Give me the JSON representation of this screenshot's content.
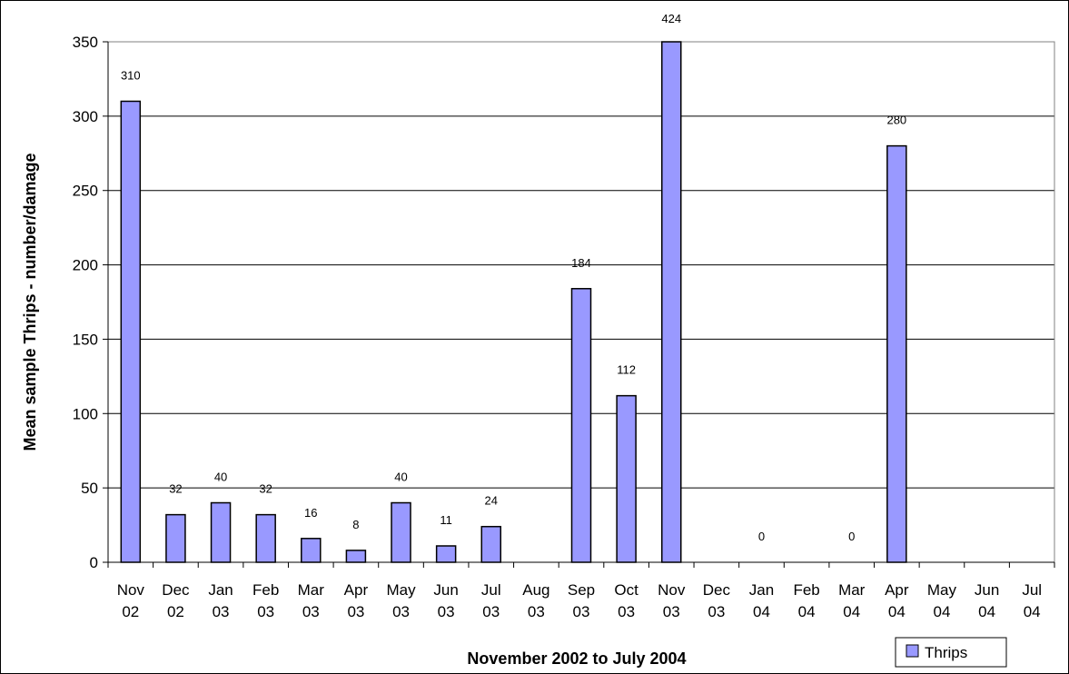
{
  "chart_data": {
    "type": "bar",
    "title": "",
    "xlabel": "November 2002 to July 2004",
    "ylabel": "Mean sample Thrips - number/damage",
    "ylim": [
      0,
      350
    ],
    "yticks": [
      0,
      50,
      100,
      150,
      200,
      250,
      300,
      350
    ],
    "grid": true,
    "legend_position": "bottom-right",
    "categories": [
      [
        "Nov",
        "02"
      ],
      [
        "Dec",
        "02"
      ],
      [
        "Jan",
        "03"
      ],
      [
        "Feb",
        "03"
      ],
      [
        "Mar",
        "03"
      ],
      [
        "Apr",
        "03"
      ],
      [
        "May",
        "03"
      ],
      [
        "Jun",
        "03"
      ],
      [
        "Jul",
        "03"
      ],
      [
        "Aug",
        "03"
      ],
      [
        "Sep",
        "03"
      ],
      [
        "Oct",
        "03"
      ],
      [
        "Nov",
        "03"
      ],
      [
        "Dec",
        "03"
      ],
      [
        "Jan",
        "04"
      ],
      [
        "Feb",
        "04"
      ],
      [
        "Mar",
        "04"
      ],
      [
        "Apr",
        "04"
      ],
      [
        "May",
        "04"
      ],
      [
        "Jun",
        "04"
      ],
      [
        "Jul",
        "04"
      ]
    ],
    "series": [
      {
        "name": "Thrips",
        "color": "#9999ff",
        "values": [
          310,
          32,
          40,
          32,
          16,
          8,
          40,
          11,
          24,
          null,
          184,
          112,
          424,
          null,
          0,
          null,
          0,
          280,
          null,
          null,
          null
        ],
        "data_labels": [
          "310",
          "32",
          "40",
          "32",
          "16",
          "8",
          "40",
          "11",
          "24",
          "",
          "184",
          "112",
          "424",
          "",
          "0",
          "",
          "0",
          "280",
          "",
          "",
          ""
        ]
      }
    ]
  }
}
